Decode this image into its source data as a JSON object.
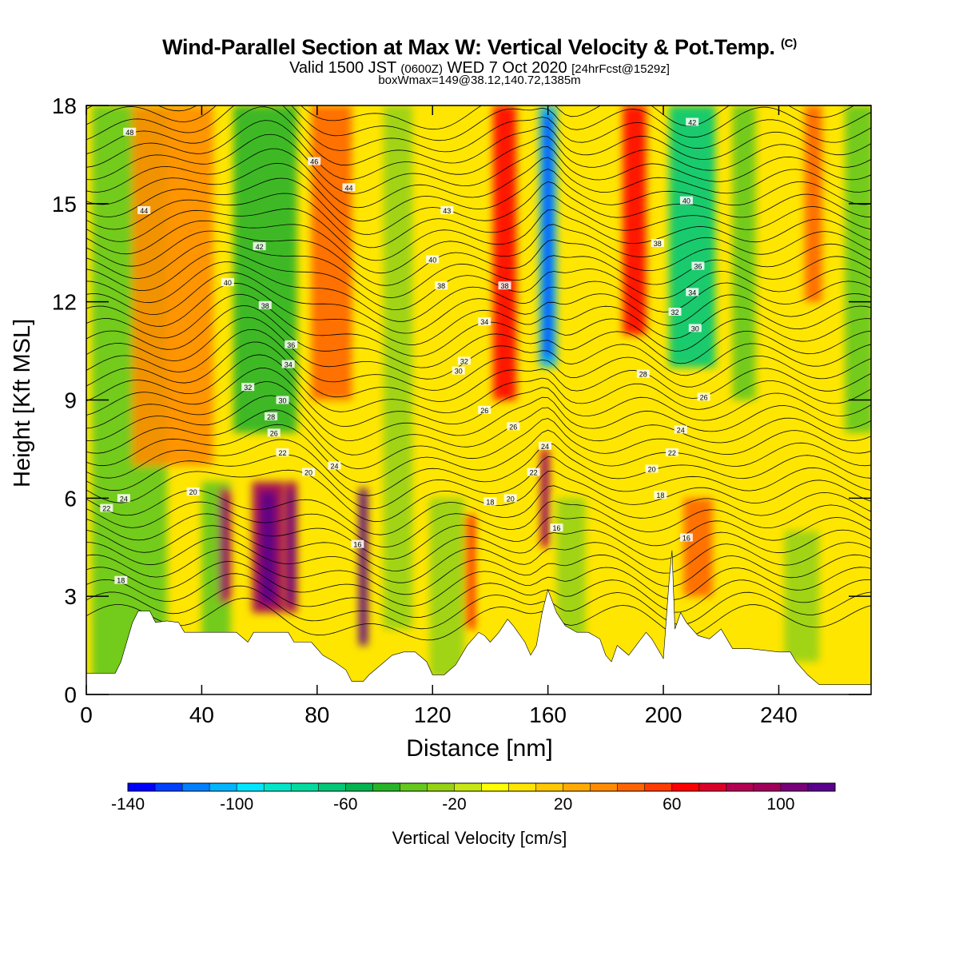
{
  "header": {
    "title_main": "Wind-Parallel Section at Max W: Vertical Velocity & Pot.Temp.",
    "title_mark": "(C)",
    "valid_part1": "Valid 1500 JST",
    "valid_part2": "(0600Z)",
    "valid_part3": "WED 7 Oct 2020",
    "valid_part4": "[24hrFcst@1529z]",
    "box_line": "boxWmax=149@38.12,140.72,1385m"
  },
  "chart_data": {
    "type": "heatmap",
    "xlabel": "Distance [nm]",
    "ylabel": "Height [Kft MSL]",
    "xlim": [
      0,
      272
    ],
    "ylim": [
      0,
      18
    ],
    "x_ticks": [
      "0",
      "40",
      "80",
      "120",
      "160",
      "200",
      "240"
    ],
    "y_ticks": [
      "0",
      "3",
      "6",
      "9",
      "12",
      "15",
      "18"
    ],
    "colorbar": {
      "label": "Vertical Velocity [cm/s]",
      "range": [
        -140,
        120
      ],
      "tick_labels": [
        "-140",
        "-100",
        "-60",
        "-20",
        "20",
        "60",
        "100"
      ],
      "colors": [
        "#0000ff",
        "#0040ff",
        "#0080ff",
        "#00b4ff",
        "#00e6ff",
        "#00e6c8",
        "#00dca0",
        "#00c878",
        "#00b450",
        "#28b428",
        "#64c81e",
        "#96d214",
        "#c8e614",
        "#ffff00",
        "#ffe600",
        "#ffc800",
        "#ffaa00",
        "#ff8c00",
        "#ff6400",
        "#ff3c00",
        "#ff0000",
        "#dc0028",
        "#b40050",
        "#a0005a",
        "#780078",
        "#5a008c"
      ]
    },
    "w_columns": [
      {
        "x": 15,
        "w": 26,
        "z0": 0,
        "z1": 18,
        "v": -40
      },
      {
        "x": 30,
        "w": 28,
        "z0": 7,
        "z1": 18,
        "v": 30
      },
      {
        "x": 45,
        "w": 10,
        "z0": 0,
        "z1": 6.5,
        "v": -40
      },
      {
        "x": 48,
        "w": 4,
        "z0": 2.8,
        "z1": 6.3,
        "v": 80
      },
      {
        "x": 62,
        "w": 22,
        "z0": 8,
        "z1": 18,
        "v": -50
      },
      {
        "x": 63,
        "w": 11,
        "z0": 2.5,
        "z1": 6.5,
        "v": 95
      },
      {
        "x": 71,
        "w": 4,
        "z0": 2.5,
        "z1": 6.5,
        "v": 90
      },
      {
        "x": 85,
        "w": 14,
        "z0": 9,
        "z1": 18,
        "v": 40
      },
      {
        "x": 96,
        "w": 3,
        "z0": 1.5,
        "z1": 6.3,
        "v": 115
      },
      {
        "x": 108,
        "w": 10,
        "z0": 2,
        "z1": 18,
        "v": -30
      },
      {
        "x": 125,
        "w": 12,
        "z0": 0.5,
        "z1": 6,
        "v": -30
      },
      {
        "x": 133,
        "w": 3,
        "z0": 2,
        "z1": 5.5,
        "v": 60
      },
      {
        "x": 145,
        "w": 8,
        "z0": 9,
        "z1": 18,
        "v": 60
      },
      {
        "x": 160,
        "w": 6,
        "z0": 10,
        "z1": 18,
        "v": -110
      },
      {
        "x": 159,
        "w": 3,
        "z0": 4.5,
        "z1": 7.5,
        "v": 80
      },
      {
        "x": 168,
        "w": 10,
        "z0": 1.5,
        "z1": 6,
        "v": -30
      },
      {
        "x": 190,
        "w": 8,
        "z0": 11,
        "z1": 18,
        "v": 60
      },
      {
        "x": 210,
        "w": 16,
        "z0": 10,
        "z1": 18,
        "v": -70
      },
      {
        "x": 212,
        "w": 10,
        "z0": 3,
        "z1": 6,
        "v": 40
      },
      {
        "x": 228,
        "w": 8,
        "z0": 9,
        "z1": 18,
        "v": -40
      },
      {
        "x": 248,
        "w": 12,
        "z0": 1,
        "z1": 5,
        "v": -30
      },
      {
        "x": 252,
        "w": 6,
        "z0": 12,
        "z1": 18,
        "v": 40
      },
      {
        "x": 268,
        "w": 10,
        "z0": 8,
        "z1": 18,
        "v": -40
      }
    ],
    "terrain": [
      [
        0,
        0.65
      ],
      [
        10,
        0.65
      ],
      [
        12,
        1.0
      ],
      [
        14,
        1.6
      ],
      [
        16,
        2.2
      ],
      [
        18,
        2.55
      ],
      [
        22,
        2.55
      ],
      [
        24,
        2.2
      ],
      [
        28,
        2.25
      ],
      [
        32,
        2.2
      ],
      [
        34,
        1.9
      ],
      [
        38,
        1.9
      ],
      [
        46,
        1.9
      ],
      [
        52,
        1.9
      ],
      [
        56,
        1.6
      ],
      [
        58,
        1.9
      ],
      [
        64,
        1.9
      ],
      [
        70,
        1.9
      ],
      [
        72,
        1.6
      ],
      [
        78,
        1.6
      ],
      [
        82,
        1.2
      ],
      [
        86,
        1.0
      ],
      [
        90,
        0.75
      ],
      [
        92,
        0.4
      ],
      [
        96,
        0.4
      ],
      [
        98,
        0.6
      ],
      [
        102,
        0.9
      ],
      [
        106,
        1.2
      ],
      [
        110,
        1.3
      ],
      [
        114,
        1.3
      ],
      [
        118,
        1.0
      ],
      [
        120,
        0.6
      ],
      [
        124,
        0.6
      ],
      [
        128,
        0.9
      ],
      [
        132,
        1.5
      ],
      [
        136,
        1.9
      ],
      [
        138,
        1.8
      ],
      [
        140,
        1.6
      ],
      [
        143,
        1.9
      ],
      [
        146,
        2.3
      ],
      [
        148,
        2.1
      ],
      [
        152,
        1.6
      ],
      [
        154,
        1.2
      ],
      [
        156,
        1.5
      ],
      [
        158,
        2.5
      ],
      [
        160,
        3.2
      ],
      [
        163,
        2.5
      ],
      [
        166,
        2.1
      ],
      [
        170,
        1.9
      ],
      [
        174,
        1.9
      ],
      [
        178,
        1.7
      ],
      [
        180,
        1.2
      ],
      [
        182,
        1.0
      ],
      [
        184,
        1.5
      ],
      [
        188,
        1.2
      ],
      [
        194,
        1.9
      ],
      [
        196,
        1.7
      ],
      [
        200,
        1.1
      ],
      [
        202,
        3.5
      ],
      [
        203,
        4.4
      ],
      [
        204,
        2.0
      ],
      [
        206,
        2.5
      ],
      [
        208,
        2.2
      ],
      [
        212,
        1.8
      ],
      [
        216,
        1.7
      ],
      [
        220,
        2.0
      ],
      [
        224,
        1.4
      ],
      [
        230,
        1.4
      ],
      [
        240,
        1.3
      ],
      [
        244,
        1.3
      ],
      [
        246,
        1.0
      ],
      [
        250,
        0.6
      ],
      [
        254,
        0.3
      ],
      [
        272,
        0.3
      ]
    ],
    "theta_labels": [
      {
        "x": 15,
        "y": 17.2,
        "t": "48"
      },
      {
        "x": 79,
        "y": 16.3,
        "t": "46"
      },
      {
        "x": 91,
        "y": 15.5,
        "t": "44"
      },
      {
        "x": 125,
        "y": 14.8,
        "t": "43"
      },
      {
        "x": 20,
        "y": 14.8,
        "t": "44"
      },
      {
        "x": 60,
        "y": 13.7,
        "t": "42"
      },
      {
        "x": 120,
        "y": 13.3,
        "t": "40"
      },
      {
        "x": 49,
        "y": 12.6,
        "t": "40"
      },
      {
        "x": 123,
        "y": 12.5,
        "t": "38"
      },
      {
        "x": 145,
        "y": 12.5,
        "t": "38"
      },
      {
        "x": 62,
        "y": 11.9,
        "t": "38"
      },
      {
        "x": 138,
        "y": 11.4,
        "t": "34"
      },
      {
        "x": 71,
        "y": 10.7,
        "t": "36"
      },
      {
        "x": 131,
        "y": 10.2,
        "t": "32"
      },
      {
        "x": 70,
        "y": 10.1,
        "t": "34"
      },
      {
        "x": 129,
        "y": 9.9,
        "t": "30"
      },
      {
        "x": 56,
        "y": 9.4,
        "t": "32"
      },
      {
        "x": 68,
        "y": 9.0,
        "t": "30"
      },
      {
        "x": 64,
        "y": 8.5,
        "t": "28"
      },
      {
        "x": 65,
        "y": 8.0,
        "t": "26"
      },
      {
        "x": 68,
        "y": 7.4,
        "t": "22"
      },
      {
        "x": 86,
        "y": 7.0,
        "t": "24"
      },
      {
        "x": 77,
        "y": 6.8,
        "t": "20"
      },
      {
        "x": 37,
        "y": 6.2,
        "t": "20"
      },
      {
        "x": 13,
        "y": 6.0,
        "t": "24"
      },
      {
        "x": 7,
        "y": 5.7,
        "t": "22"
      },
      {
        "x": 138,
        "y": 8.7,
        "t": "26"
      },
      {
        "x": 148,
        "y": 8.2,
        "t": "26"
      },
      {
        "x": 155,
        "y": 6.8,
        "t": "22"
      },
      {
        "x": 159,
        "y": 7.6,
        "t": "24"
      },
      {
        "x": 140,
        "y": 5.9,
        "t": "18"
      },
      {
        "x": 147,
        "y": 6.0,
        "t": "20"
      },
      {
        "x": 163,
        "y": 5.1,
        "t": "16"
      },
      {
        "x": 210,
        "y": 17.5,
        "t": "42"
      },
      {
        "x": 208,
        "y": 15.1,
        "t": "40"
      },
      {
        "x": 198,
        "y": 13.8,
        "t": "38"
      },
      {
        "x": 212,
        "y": 13.1,
        "t": "36"
      },
      {
        "x": 210,
        "y": 12.3,
        "t": "34"
      },
      {
        "x": 204,
        "y": 11.7,
        "t": "32"
      },
      {
        "x": 211,
        "y": 11.2,
        "t": "30"
      },
      {
        "x": 193,
        "y": 9.8,
        "t": "28"
      },
      {
        "x": 214,
        "y": 9.1,
        "t": "26"
      },
      {
        "x": 206,
        "y": 8.1,
        "t": "24"
      },
      {
        "x": 203,
        "y": 7.4,
        "t": "22"
      },
      {
        "x": 196,
        "y": 6.9,
        "t": "20"
      },
      {
        "x": 199,
        "y": 6.1,
        "t": "18"
      },
      {
        "x": 208,
        "y": 4.8,
        "t": "16"
      },
      {
        "x": 94,
        "y": 4.6,
        "t": "16"
      },
      {
        "x": 12,
        "y": 3.5,
        "t": "18"
      }
    ]
  }
}
